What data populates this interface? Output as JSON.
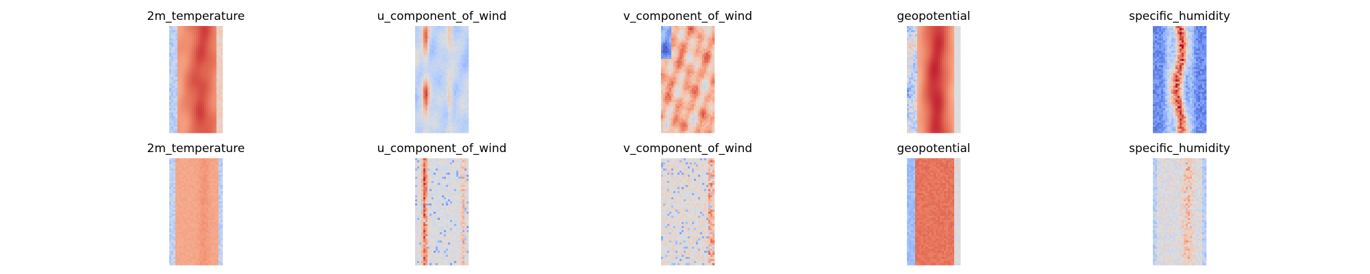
{
  "chart_data": {
    "type": "heatmap",
    "colormap": "coolwarm",
    "axes_visible": false,
    "grid": false,
    "legend": "none",
    "layout": {
      "rows": 2,
      "cols": 5
    },
    "panels": [
      {
        "title": "2m_temperature",
        "row": 0,
        "col": 0,
        "pattern": "temperature"
      },
      {
        "title": "u_component_of_wind",
        "row": 0,
        "col": 1,
        "pattern": "u_wind"
      },
      {
        "title": "v_component_of_wind",
        "row": 0,
        "col": 2,
        "pattern": "v_wind"
      },
      {
        "title": "geopotential",
        "row": 0,
        "col": 3,
        "pattern": "geopotential"
      },
      {
        "title": "specific_humidity",
        "row": 0,
        "col": 4,
        "pattern": "humidity"
      },
      {
        "title": "2m_temperature",
        "row": 1,
        "col": 0,
        "pattern": "temperature_recon"
      },
      {
        "title": "u_component_of_wind",
        "row": 1,
        "col": 1,
        "pattern": "u_wind_recon"
      },
      {
        "title": "v_component_of_wind",
        "row": 1,
        "col": 2,
        "pattern": "v_wind_recon"
      },
      {
        "title": "geopotential",
        "row": 1,
        "col": 3,
        "pattern": "geopotential_recon"
      },
      {
        "title": "specific_humidity",
        "row": 1,
        "col": 4,
        "pattern": "humidity_recon"
      }
    ]
  }
}
